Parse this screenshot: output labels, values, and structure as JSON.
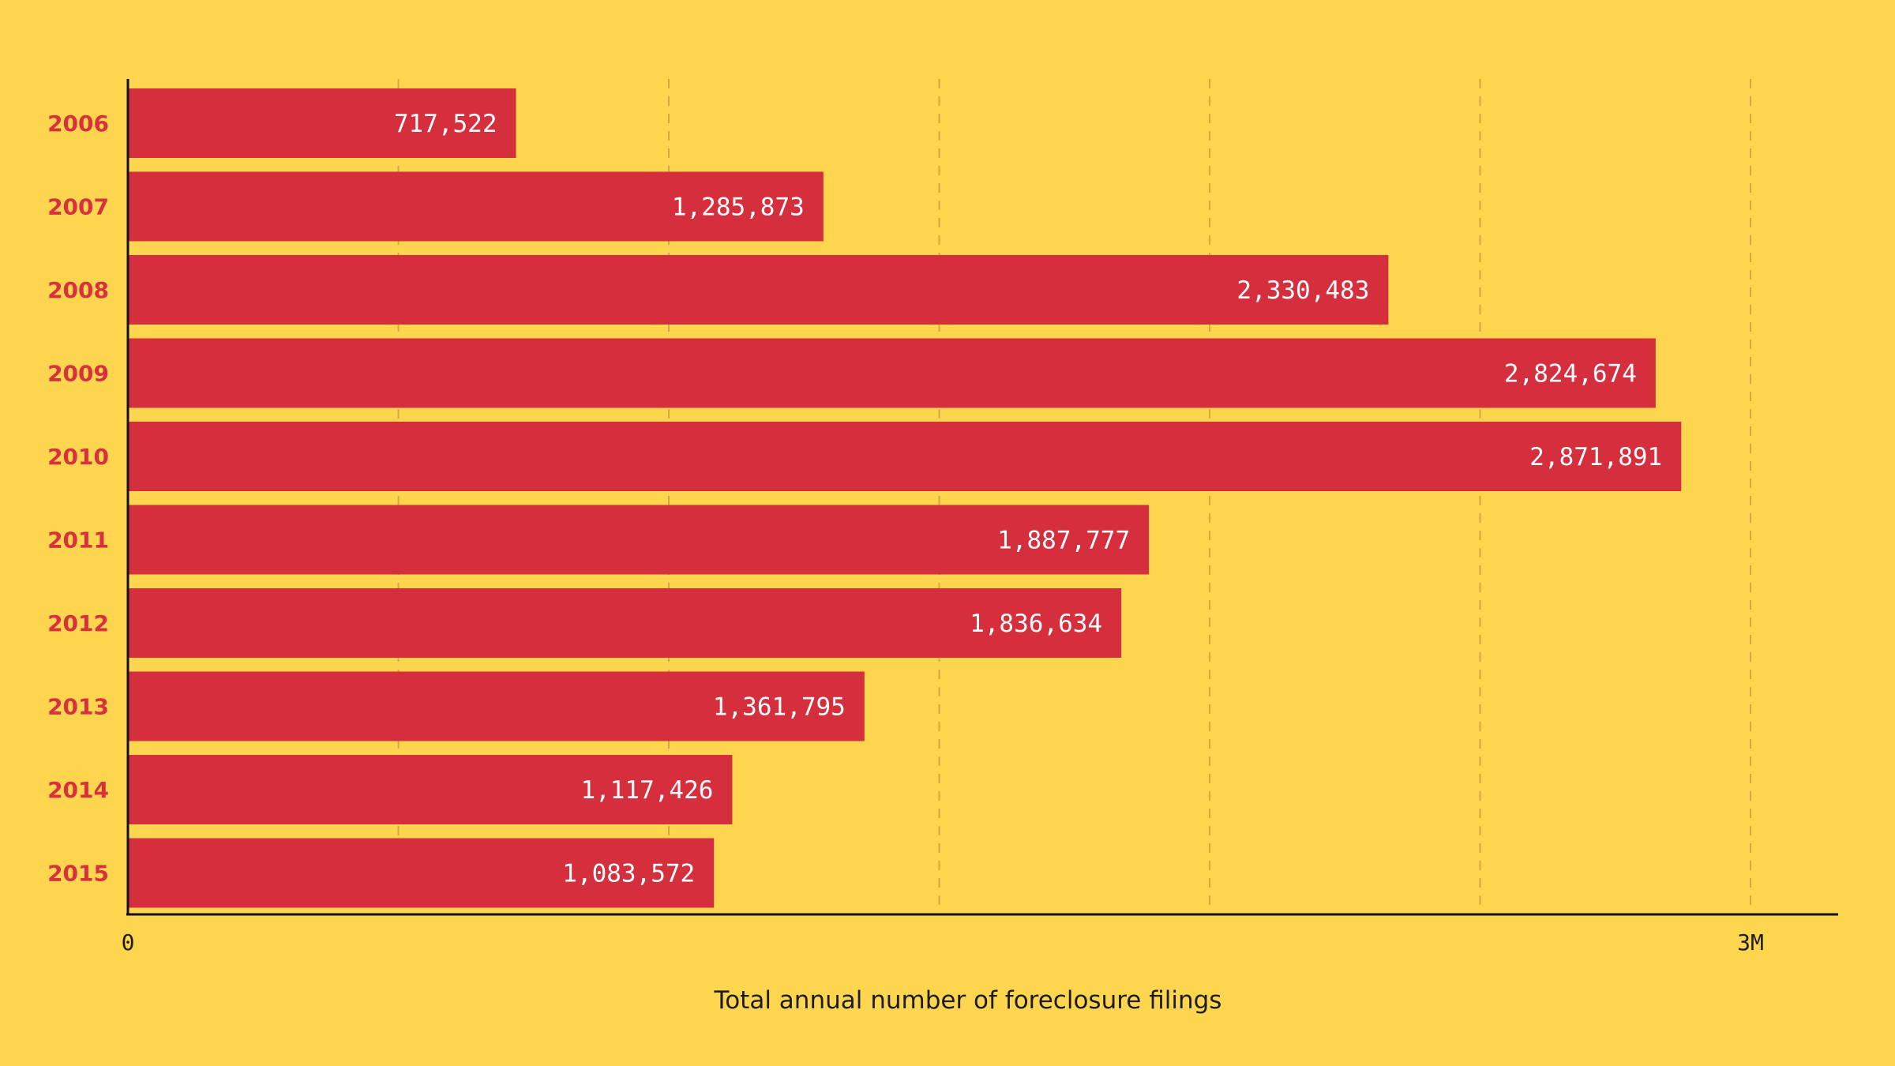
{
  "chart_data": {
    "type": "bar",
    "orientation": "horizontal",
    "categories": [
      "2006",
      "2007",
      "2008",
      "2009",
      "2010",
      "2011",
      "2012",
      "2013",
      "2014",
      "2015"
    ],
    "values": [
      717522,
      1285873,
      2330483,
      2824674,
      2871891,
      1887777,
      1836634,
      1361795,
      1117426,
      1083572
    ],
    "value_labels": [
      "717,522",
      "1,285,873",
      "2,330,483",
      "2,824,674",
      "2,871,891",
      "1,887,777",
      "1,836,634",
      "1,361,795",
      "1,117,426",
      "1,083,572"
    ],
    "title": "",
    "xlabel": "Total annual number of foreclosure filings",
    "ylabel": "",
    "xlim": [
      0,
      3000000
    ],
    "xticks": [
      0,
      3000000
    ],
    "xtick_labels": [
      "0",
      "3M"
    ],
    "gridlines": [
      500000,
      1000000,
      1500000,
      2000000,
      2500000,
      3000000
    ],
    "grid": true,
    "grid_style": "dashed",
    "colors": {
      "background": "#fed54f",
      "bar": "#d52f3e",
      "category_label": "#d9303d",
      "value_label": "#ffffff",
      "axis": "#111111",
      "grid": "#d2ab3e"
    }
  }
}
